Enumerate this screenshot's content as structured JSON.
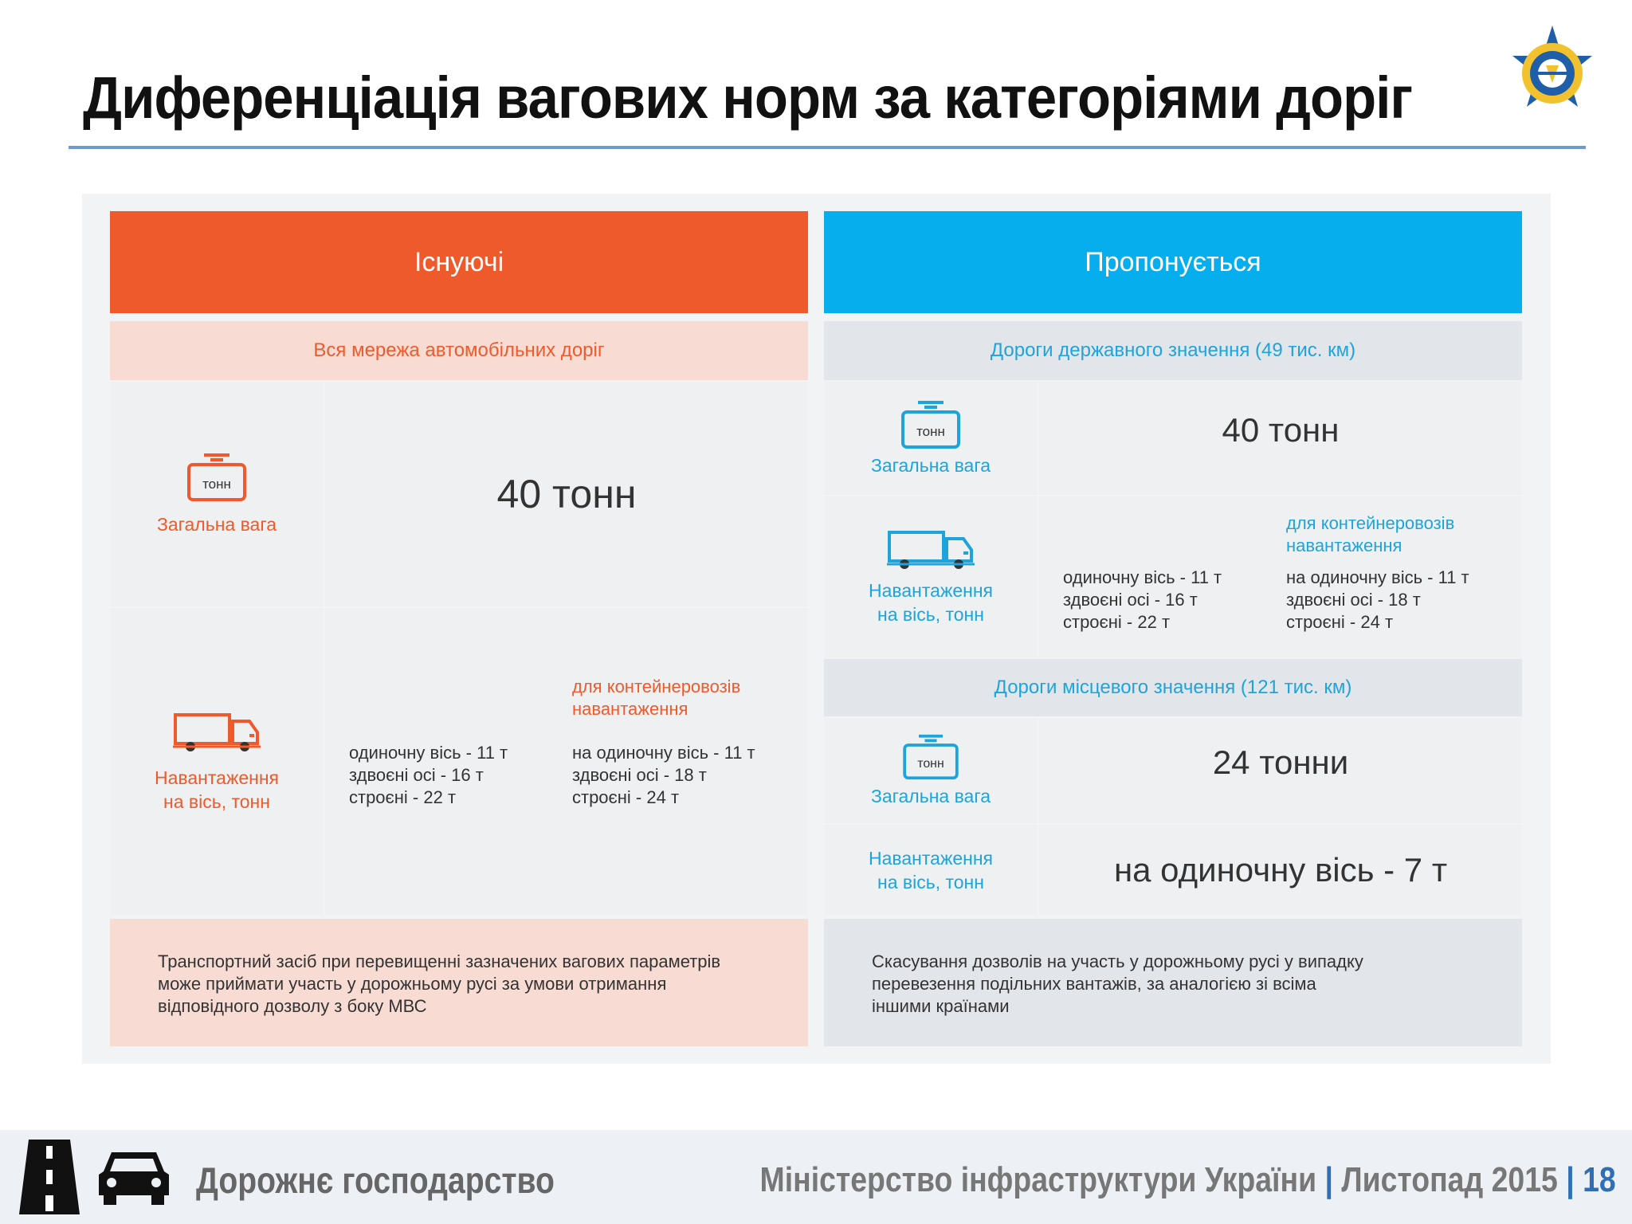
{
  "title": "Диференціація вагових норм за категоріями доріг",
  "existing": {
    "header": "Існуючі",
    "network": "Вся мережа автомобільних доріг",
    "total_label": "Загальна вага",
    "total_value": "40 тонн",
    "axle_label_1": "Навантаження",
    "axle_label_2": "на вісь, тонн",
    "axle_general": [
      "одиночну вісь - 11 т",
      "здвоєні осі - 16 т",
      "строєні - 22 т"
    ],
    "container_title_1": "для контейнеровозів",
    "container_title_2": "навантаження",
    "axle_container": [
      "на одиночну вісь - 11 т",
      "здвоєні осі - 18 т",
      "строєні - 24 т"
    ],
    "note": [
      "Транспортний засіб при перевищенні зазначених вагових параметрів",
      "може приймати участь у дорожньому русі за умови отримання",
      "відповідного дозволу з боку МВС"
    ]
  },
  "proposed": {
    "header": "Пропонується",
    "state_roads": "Дороги державного значення (49 тис. км)",
    "state_total_label": "Загальна вага",
    "state_total_value": "40 тонн",
    "state_axle_label_1": "Навантаження",
    "state_axle_label_2": "на вісь, тонн",
    "state_axle_general": [
      "одиночну вісь - 11 т",
      "здвоєні осі - 16 т",
      "строєні - 22 т"
    ],
    "container_title_1": "для контейнеровозів",
    "container_title_2": "навантаження",
    "state_axle_container": [
      "на одиночну вісь - 11 т",
      "здвоєні осі - 18 т",
      "строєні - 24 т"
    ],
    "local_roads": "Дороги місцевого значення (121 тис. км)",
    "local_total_label": "Загальна вага",
    "local_total_value": "24 тонни",
    "local_axle_label_1": "Навантаження",
    "local_axle_label_2": "на вісь, тонн",
    "local_axle_value": "на одиночну вісь - 7 т",
    "note": [
      "Скасування дозволів на участь у дорожньому русі у випадку",
      "перевезення подільних вантажів, за аналогією зі всіма",
      "іншими країнами"
    ]
  },
  "icon_label": "тонн",
  "footer": {
    "left": "Дорожнє господарство",
    "ministry": "Міністерство інфраструктури України",
    "date": "Листопад 2015",
    "page": "18"
  },
  "colors": {
    "orange": "#ef5a2c",
    "blue": "#06aeed",
    "title_rule": "#6d9bd1"
  }
}
